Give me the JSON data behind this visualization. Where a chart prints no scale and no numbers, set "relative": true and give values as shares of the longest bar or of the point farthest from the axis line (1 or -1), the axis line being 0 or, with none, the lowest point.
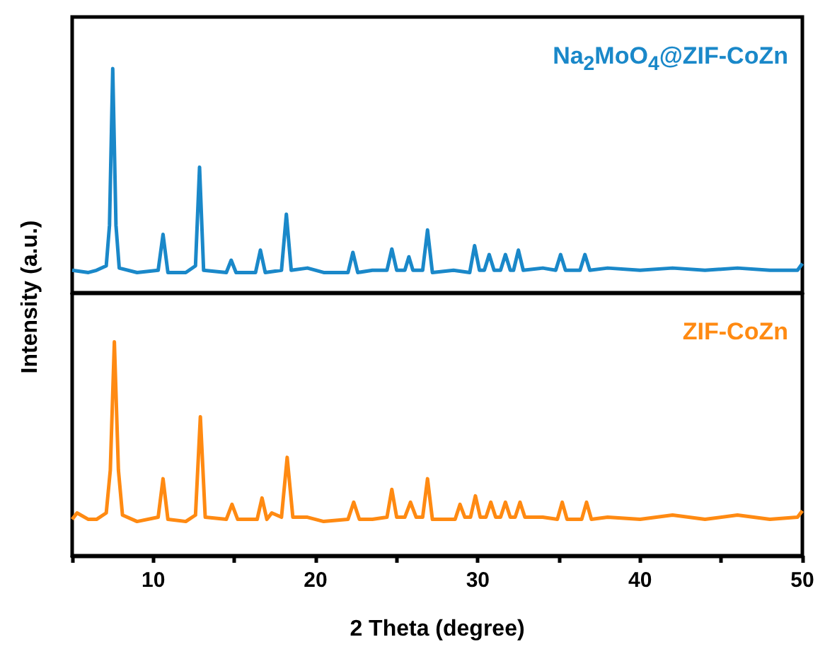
{
  "chart_data": [
    {
      "type": "line",
      "relative": true,
      "xlim": [
        5,
        50
      ],
      "tick_labels": false,
      "ylabel": "Intensity (a.u.)",
      "grid": false,
      "marker": "none",
      "series": [
        {
          "name": "Na$_{2}$MoO$_{4}$@ZIF-CoZn",
          "color": "#1a88c9",
          "x": [
            5,
            6,
            6.5,
            7.1,
            7.3,
            7.5,
            7.7,
            7.9,
            9,
            10.3,
            10.6,
            10.9,
            12,
            12.6,
            12.85,
            13.1,
            14.5,
            14.8,
            15.1,
            16.3,
            16.6,
            16.9,
            17.9,
            18.2,
            18.5,
            19.5,
            20.5,
            22,
            22.3,
            22.6,
            23.5,
            24.4,
            24.7,
            25,
            25.5,
            25.75,
            26,
            26.6,
            26.9,
            27.2,
            28.5,
            29.5,
            29.8,
            30.1,
            30.4,
            30.7,
            31,
            31.4,
            31.7,
            32,
            32.2,
            32.5,
            32.8,
            34,
            34.8,
            35.1,
            35.4,
            36.3,
            36.6,
            36.9,
            38,
            40,
            42,
            44,
            46,
            48,
            49.7,
            50
          ],
          "values": [
            0.1,
            0.09,
            0.1,
            0.12,
            0.3,
            1.0,
            0.3,
            0.11,
            0.09,
            0.1,
            0.26,
            0.09,
            0.09,
            0.12,
            0.56,
            0.1,
            0.09,
            0.145,
            0.09,
            0.09,
            0.19,
            0.09,
            0.1,
            0.35,
            0.1,
            0.11,
            0.09,
            0.09,
            0.18,
            0.09,
            0.1,
            0.1,
            0.195,
            0.1,
            0.1,
            0.16,
            0.1,
            0.1,
            0.28,
            0.09,
            0.1,
            0.09,
            0.21,
            0.1,
            0.1,
            0.17,
            0.1,
            0.1,
            0.17,
            0.1,
            0.1,
            0.19,
            0.1,
            0.11,
            0.1,
            0.17,
            0.1,
            0.1,
            0.17,
            0.1,
            0.11,
            0.1,
            0.11,
            0.1,
            0.11,
            0.1,
            0.1,
            0.13
          ]
        }
      ]
    },
    {
      "type": "line",
      "relative": true,
      "xlim": [
        5,
        50
      ],
      "xticks": [
        {
          "value": 5,
          "label": null
        },
        10,
        {
          "value": 15,
          "label": null
        },
        20,
        {
          "value": 25,
          "label": null
        },
        30,
        {
          "value": 35,
          "label": null
        },
        40,
        {
          "value": 45,
          "label": null
        },
        50
      ],
      "tick_labels": "x",
      "xlabel": "2 Theta (degree)",
      "grid": false,
      "marker": "none",
      "series": [
        {
          "name": "ZIF-CoZn",
          "color": "#ff8a12",
          "x": [
            5,
            5.3,
            6,
            6.5,
            7.1,
            7.35,
            7.6,
            7.85,
            8.1,
            9,
            10.3,
            10.6,
            10.9,
            12,
            12.6,
            12.9,
            13.2,
            14.5,
            14.85,
            15.2,
            16.4,
            16.7,
            17,
            17.3,
            17.9,
            18.25,
            18.6,
            19.5,
            20.5,
            22,
            22.35,
            22.7,
            23.5,
            24.4,
            24.7,
            25,
            25.5,
            25.85,
            26.2,
            26.6,
            26.9,
            27.2,
            28.6,
            28.9,
            29.2,
            29.55,
            29.85,
            30.15,
            30.5,
            30.8,
            31.1,
            31.4,
            31.7,
            32,
            32.3,
            32.6,
            32.9,
            34,
            34.9,
            35.2,
            35.5,
            36.4,
            36.7,
            37,
            38,
            40,
            42,
            44,
            46,
            48,
            49.7,
            50
          ],
          "values": [
            0.17,
            0.2,
            0.17,
            0.17,
            0.2,
            0.4,
            1.0,
            0.4,
            0.19,
            0.16,
            0.18,
            0.36,
            0.17,
            0.16,
            0.19,
            0.65,
            0.18,
            0.17,
            0.24,
            0.17,
            0.17,
            0.27,
            0.17,
            0.2,
            0.18,
            0.46,
            0.18,
            0.18,
            0.16,
            0.17,
            0.25,
            0.17,
            0.17,
            0.18,
            0.31,
            0.18,
            0.18,
            0.25,
            0.18,
            0.18,
            0.36,
            0.17,
            0.17,
            0.24,
            0.18,
            0.18,
            0.28,
            0.18,
            0.18,
            0.25,
            0.18,
            0.18,
            0.25,
            0.18,
            0.18,
            0.25,
            0.18,
            0.18,
            0.17,
            0.25,
            0.17,
            0.17,
            0.25,
            0.17,
            0.18,
            0.17,
            0.19,
            0.17,
            0.19,
            0.17,
            0.18,
            0.21
          ]
        }
      ]
    }
  ]
}
